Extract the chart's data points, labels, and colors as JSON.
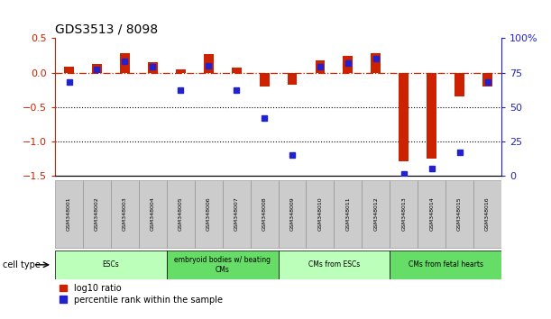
{
  "title": "GDS3513 / 8098",
  "samples": [
    "GSM348001",
    "GSM348002",
    "GSM348003",
    "GSM348004",
    "GSM348005",
    "GSM348006",
    "GSM348007",
    "GSM348008",
    "GSM348009",
    "GSM348010",
    "GSM348011",
    "GSM348012",
    "GSM348013",
    "GSM348014",
    "GSM348015",
    "GSM348016"
  ],
  "log10_ratio": [
    0.08,
    0.12,
    0.28,
    0.15,
    0.05,
    0.27,
    0.07,
    -0.2,
    -0.18,
    0.18,
    0.25,
    0.28,
    -1.3,
    -1.25,
    -0.35,
    -0.2
  ],
  "percentile_rank": [
    68,
    77,
    83,
    79,
    62,
    80,
    62,
    42,
    15,
    79,
    82,
    85,
    1,
    5,
    17,
    68
  ],
  "ylim_left": [
    -1.5,
    0.5
  ],
  "ylim_right": [
    0,
    100
  ],
  "left_ticks": [
    -1.5,
    -1.0,
    -0.5,
    0.0,
    0.5
  ],
  "right_ticks": [
    0,
    25,
    50,
    75,
    100
  ],
  "right_tick_labels": [
    "0",
    "25",
    "50",
    "75",
    "100%"
  ],
  "dotted_lines": [
    -0.5,
    -1.0
  ],
  "bar_color_red": "#CC2200",
  "bar_color_blue": "#2222CC",
  "zero_line_color": "#CC2200",
  "cell_type_groups": [
    {
      "label": "ESCs",
      "start": 0,
      "end": 3,
      "color": "#BBFFBB"
    },
    {
      "label": "embryoid bodies w/ beating\nCMs",
      "start": 4,
      "end": 7,
      "color": "#66DD66"
    },
    {
      "label": "CMs from ESCs",
      "start": 8,
      "end": 11,
      "color": "#BBFFBB"
    },
    {
      "label": "CMs from fetal hearts",
      "start": 12,
      "end": 15,
      "color": "#66DD66"
    }
  ],
  "legend_red": "log10 ratio",
  "legend_blue": "percentile rank within the sample",
  "red_bar_width": 0.35,
  "blue_marker_size": 4.5,
  "background_color": "#FFFFFF",
  "label_box_color": "#CCCCCC",
  "left_spine_color": "#CC2200",
  "right_spine_color": "#2222CC"
}
